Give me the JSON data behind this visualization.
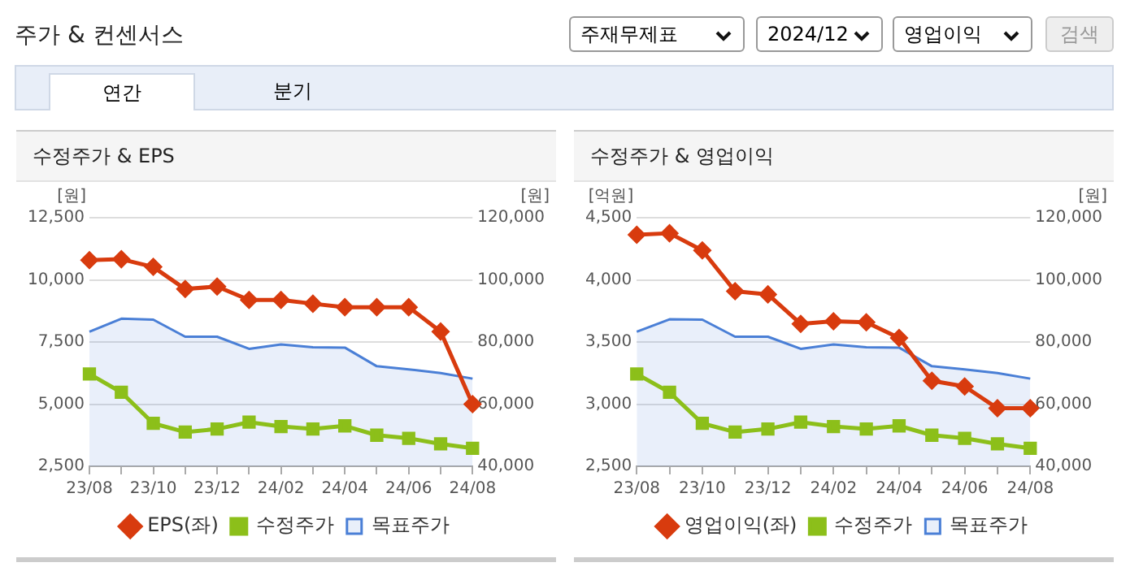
{
  "chart_data": [
    {
      "type": "other",
      "title": "주가 & 컨센서스",
      "annotations": [
        "주재무제표",
        "2024/12",
        "영업이익",
        "검색",
        "연간",
        "분기"
      ]
    },
    {
      "type": "line",
      "title": "수정주가 & EPS",
      "ylabel": "[원]",
      "y2label": "[원]",
      "categories": [
        "23/08",
        null,
        "23/10",
        null,
        "23/12",
        null,
        "24/02",
        null,
        "24/04",
        null,
        "24/06",
        null,
        "24/08"
      ],
      "ylim": [
        2500,
        12500
      ],
      "yticks": [
        {
          "value": 2500,
          "label": "2,500"
        },
        {
          "value": 5000,
          "label": "5,000"
        },
        {
          "value": 7500,
          "label": "7,500"
        },
        {
          "value": 10000,
          "label": "10,000"
        },
        {
          "value": 12500,
          "label": "12,500"
        }
      ],
      "y2lim": [
        40000,
        120000
      ],
      "y2ticks": [
        {
          "value": 40000,
          "label": "40,000"
        },
        {
          "value": 60000,
          "label": "60,000"
        },
        {
          "value": 80000,
          "label": "80,000"
        },
        {
          "value": 100000,
          "label": "100,000"
        },
        {
          "value": 120000,
          "label": "120,000"
        }
      ],
      "grid": "y",
      "legend": "bottom",
      "series": [
        {
          "name": "목표주가",
          "type": "area",
          "axis": "y2",
          "color": "#4a7fd6",
          "values": [
            83300,
            87500,
            87200,
            81700,
            81700,
            77800,
            79200,
            78300,
            78200,
            72200,
            71200,
            70000,
            68200
          ]
        },
        {
          "name": "EPS(좌)",
          "type": "line",
          "marker": "diamond",
          "color": "#d83b0e",
          "values": [
            10790,
            10830,
            10520,
            9630,
            9730,
            9190,
            9190,
            9040,
            8900,
            8900,
            8900,
            7920,
            5000
          ]
        },
        {
          "name": "수정주가",
          "type": "line",
          "marker": "square",
          "axis": "y2",
          "color": "#8cbf1a",
          "values": [
            69700,
            63800,
            53800,
            51000,
            52000,
            54200,
            52800,
            52000,
            53000,
            50000,
            49000,
            47200,
            45800
          ]
        }
      ]
    },
    {
      "type": "line",
      "title": "수정주가 & 영업이익",
      "ylabel": "[억원]",
      "y2label": "[원]",
      "categories": [
        "23/08",
        null,
        "23/10",
        null,
        "23/12",
        null,
        "24/02",
        null,
        "24/04",
        null,
        "24/06",
        null,
        "24/08"
      ],
      "ylim": [
        2500,
        4500
      ],
      "yticks": [
        {
          "value": 2500,
          "label": "2,500"
        },
        {
          "value": 3000,
          "label": "3,000"
        },
        {
          "value": 3500,
          "label": "3,500"
        },
        {
          "value": 4000,
          "label": "4,000"
        },
        {
          "value": 4500,
          "label": "4,500"
        }
      ],
      "y2lim": [
        40000,
        120000
      ],
      "y2ticks": [
        {
          "value": 40000,
          "label": "40,000"
        },
        {
          "value": 60000,
          "label": "60,000"
        },
        {
          "value": 80000,
          "label": "80,000"
        },
        {
          "value": 100000,
          "label": "100,000"
        },
        {
          "value": 120000,
          "label": "120,000"
        }
      ],
      "grid": "y",
      "legend": "bottom",
      "series": [
        {
          "name": "목표주가",
          "type": "area",
          "axis": "y2",
          "color": "#4a7fd6",
          "values": [
            83300,
            87300,
            87200,
            81700,
            81700,
            77800,
            79200,
            78300,
            78200,
            72200,
            71200,
            70000,
            68200
          ]
        },
        {
          "name": "영업이익(좌)",
          "type": "line",
          "marker": "diamond",
          "color": "#d83b0e",
          "values": [
            4363,
            4375,
            4237,
            3908,
            3883,
            3646,
            3667,
            3658,
            3533,
            3188,
            3142,
            2967,
            2967
          ]
        },
        {
          "name": "수정주가",
          "type": "line",
          "marker": "square",
          "axis": "y2",
          "color": "#8cbf1a",
          "values": [
            69700,
            63800,
            53800,
            51000,
            52000,
            54200,
            52800,
            52000,
            53000,
            50000,
            49000,
            47200,
            45800
          ]
        }
      ]
    }
  ]
}
